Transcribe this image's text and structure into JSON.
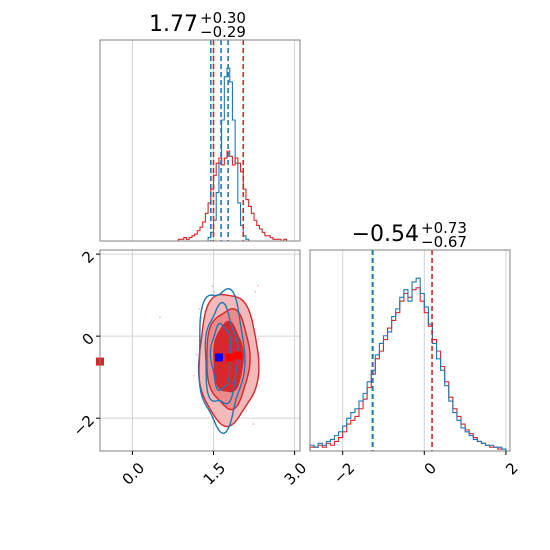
{
  "chart_data": [
    {
      "type": "histogram",
      "panel": "marginal-x",
      "title": {
        "main": "1.77",
        "sup": "+0.30",
        "sub": "−0.29"
      },
      "xlim": [
        -0.6,
        3.1
      ],
      "xticks": [
        "0.0",
        "1.5",
        "3.0"
      ],
      "xtick_values": [
        0.0,
        1.5,
        3.0
      ],
      "grid": true,
      "bins_x": [
        0.85,
        0.9,
        0.95,
        1.0,
        1.05,
        1.1,
        1.15,
        1.2,
        1.25,
        1.3,
        1.35,
        1.4,
        1.45,
        1.5,
        1.55,
        1.6,
        1.65,
        1.7,
        1.75,
        1.8,
        1.85,
        1.9,
        1.95,
        2.0,
        2.05,
        2.1,
        2.15,
        2.2,
        2.25,
        2.3,
        2.35,
        2.4,
        2.45,
        2.5,
        2.55,
        2.6,
        2.65,
        2.7,
        2.75,
        2.8,
        2.85,
        2.9,
        2.95,
        3.0
      ],
      "series": [
        {
          "color": "#1f77b4",
          "counts": [
            0,
            0,
            0,
            0,
            0,
            0,
            0,
            0,
            0,
            0,
            0,
            2,
            5,
            12,
            28,
            45,
            70,
            95,
            100,
            92,
            70,
            45,
            22,
            9,
            3,
            1,
            0,
            0,
            0,
            0,
            0,
            0,
            0,
            0,
            0,
            0,
            0,
            0,
            0,
            0,
            0,
            0,
            0
          ]
        },
        {
          "color": "#d62728",
          "counts": [
            1,
            1,
            2,
            1,
            2,
            3,
            4,
            6,
            8,
            11,
            16,
            22,
            30,
            38,
            45,
            48,
            44,
            48,
            52,
            49,
            44,
            48,
            45,
            40,
            30,
            24,
            20,
            16,
            12,
            9,
            7,
            5,
            3,
            3,
            2,
            1,
            1,
            1,
            0,
            1,
            0,
            0,
            0
          ]
        }
      ],
      "quantile_lines": [
        {
          "color": "#1f77b4",
          "x": [
            1.45,
            1.77
          ]
        },
        {
          "color": "#d62728",
          "x": [
            1.5,
            2.05
          ]
        },
        {
          "color": "#1f77b4",
          "x": [
            1.64
          ]
        }
      ]
    },
    {
      "type": "histogram",
      "panel": "marginal-y",
      "title": {
        "main": "−0.54",
        "sup": "+0.73",
        "sub": "−0.67"
      },
      "xlim": [
        -2.8,
        2.1
      ],
      "xticks": [
        "−2",
        "0",
        "2"
      ],
      "xtick_values": [
        -2,
        0,
        2
      ],
      "grid": true,
      "bins_x": [
        -2.8,
        -2.7,
        -2.6,
        -2.5,
        -2.4,
        -2.3,
        -2.2,
        -2.1,
        -2.0,
        -1.9,
        -1.8,
        -1.7,
        -1.6,
        -1.5,
        -1.4,
        -1.3,
        -1.2,
        -1.1,
        -1.0,
        -0.9,
        -0.8,
        -0.7,
        -0.6,
        -0.5,
        -0.4,
        -0.3,
        -0.2,
        -0.1,
        0.0,
        0.1,
        0.2,
        0.3,
        0.4,
        0.5,
        0.6,
        0.7,
        0.8,
        0.9,
        1.0,
        1.1,
        1.2,
        1.3,
        1.4,
        1.5,
        1.6,
        1.7,
        1.8,
        1.9,
        2.0
      ],
      "series": [
        {
          "color": "#d62728",
          "counts": [
            2,
            2,
            3,
            2,
            4,
            3,
            5,
            7,
            10,
            14,
            16,
            18,
            22,
            27,
            33,
            40,
            48,
            52,
            58,
            64,
            68,
            72,
            78,
            82,
            80,
            84,
            85,
            78,
            72,
            65,
            58,
            52,
            44,
            36,
            28,
            22,
            18,
            14,
            11,
            9,
            7,
            5,
            4,
            3,
            2,
            2,
            1,
            1
          ]
        },
        {
          "color": "#1f77b4",
          "counts": [
            3,
            2,
            4,
            3,
            5,
            6,
            8,
            10,
            13,
            17,
            20,
            22,
            26,
            30,
            36,
            42,
            50,
            56,
            60,
            62,
            70,
            74,
            80,
            84,
            78,
            88,
            90,
            82,
            75,
            66,
            56,
            48,
            42,
            34,
            26,
            20,
            16,
            12,
            10,
            8,
            6,
            5,
            4,
            3,
            3,
            2,
            2,
            1
          ]
        }
      ],
      "quantile_lines": [
        {
          "color": "#d62728",
          "x": [
            -1.27,
            0.19
          ]
        },
        {
          "color": "#1f77b4",
          "x": [
            -1.26
          ]
        }
      ]
    },
    {
      "type": "contour",
      "panel": "joint",
      "xlim": [
        -0.6,
        3.1
      ],
      "ylim": [
        -2.8,
        2.1
      ],
      "xticks": [
        "0.0",
        "1.5",
        "3.0"
      ],
      "xtick_values": [
        0.0,
        1.5,
        3.0
      ],
      "yticks": [
        "−2",
        "0",
        "2"
      ],
      "ytick_values": [
        -2,
        0,
        2
      ],
      "grid": true,
      "series": [
        {
          "color": "#d62728",
          "center": [
            1.77,
            -0.54
          ],
          "filled_levels": [
            {
              "sx": 0.55,
              "sy": 1.6,
              "fill": "#f4b9bb"
            },
            {
              "sx": 0.4,
              "sy": 1.2,
              "fill": "#ec8a8c"
            },
            {
              "sx": 0.27,
              "sy": 0.85,
              "fill": "#d9282d"
            }
          ]
        },
        {
          "color": "#1f77b4",
          "center": [
            1.64,
            -0.5
          ],
          "line_levels": [
            {
              "sx": 0.42,
              "sy": 1.7
            },
            {
              "sx": 0.3,
              "sy": 1.2
            },
            {
              "sx": 0.18,
              "sy": 0.8
            }
          ]
        }
      ],
      "markers": [
        {
          "color": "#0000ff",
          "x": 1.6,
          "y": -0.52
        },
        {
          "color": "#ff0000",
          "x": 1.8,
          "y": -0.52
        },
        {
          "color": "#ff0000",
          "x": 1.95,
          "y": -0.47
        },
        {
          "color": "#d62728",
          "x": -0.6,
          "y": -0.62
        }
      ]
    }
  ]
}
